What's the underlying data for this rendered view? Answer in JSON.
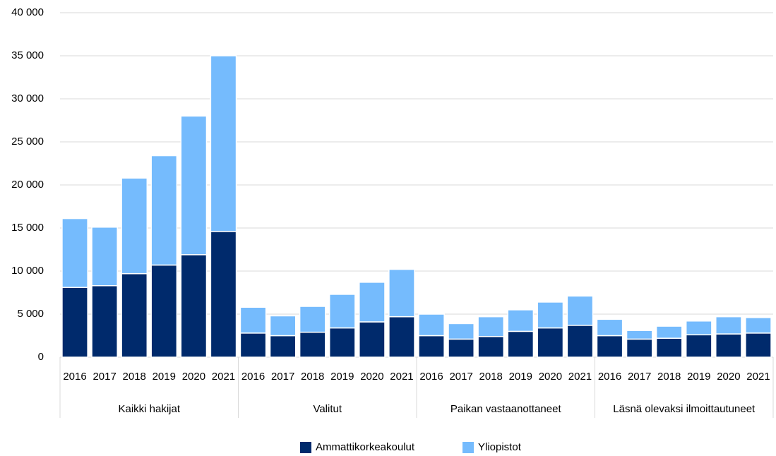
{
  "chart_data": {
    "type": "stacked_bar",
    "categories": [
      "2016",
      "2017",
      "2018",
      "2019",
      "2020",
      "2021",
      "2016",
      "2017",
      "2018",
      "2019",
      "2020",
      "2021",
      "2016",
      "2017",
      "2018",
      "2019",
      "2020",
      "2021",
      "2016",
      "2017",
      "2018",
      "2019",
      "2020",
      "2021"
    ],
    "groups": [
      "Kaikki hakijat",
      "Valitut",
      "Paikan vastaanottaneet",
      "Läsnä olevaksi ilmoittautuneet"
    ],
    "series": [
      {
        "name": "Ammattikorkeakoulut",
        "color": "#002a6c",
        "values": [
          8100,
          8300,
          9700,
          10700,
          11900,
          14600,
          2800,
          2500,
          2900,
          3400,
          4100,
          4700,
          2500,
          2100,
          2400,
          3000,
          3400,
          3700,
          2500,
          2100,
          2200,
          2600,
          2700,
          2800
        ]
      },
      {
        "name": "Yliopistot",
        "color": "#75bbfd",
        "values": [
          8000,
          6800,
          11100,
          12700,
          16100,
          20400,
          3000,
          2300,
          3000,
          3900,
          4600,
          5500,
          2500,
          1800,
          2300,
          2500,
          3000,
          3400,
          1900,
          1000,
          1400,
          1600,
          2000,
          1800
        ]
      }
    ],
    "ylim": [
      0,
      40000
    ],
    "yticks": [
      0,
      {
        "value": 5000,
        "label": "5 000"
      },
      {
        "value": 10000,
        "label": "10 000"
      },
      {
        "value": 15000,
        "label": "15 000"
      },
      {
        "value": 20000,
        "label": "20 000"
      },
      {
        "value": 25000,
        "label": "25 000"
      },
      {
        "value": 30000,
        "label": "30 000"
      },
      {
        "value": 35000,
        "label": "35 000"
      },
      {
        "value": 40000,
        "label": "40 000"
      }
    ],
    "grid": true,
    "legend": "bottom"
  }
}
